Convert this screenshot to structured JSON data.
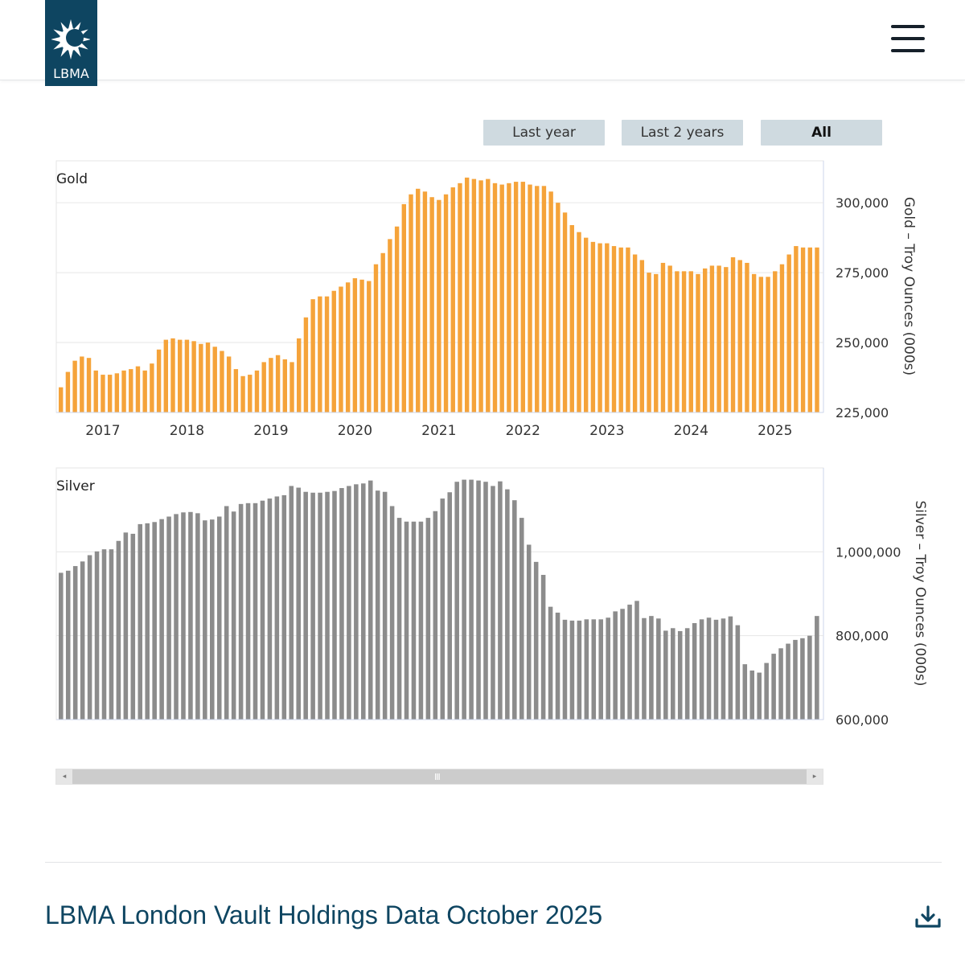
{
  "header": {
    "logo_text": "LBMA",
    "menu_icon": "hamburger-menu-icon"
  },
  "range_buttons": [
    {
      "label": "Last year",
      "active": false
    },
    {
      "label": "Last 2 years",
      "active": false
    },
    {
      "label": "All",
      "active": true
    }
  ],
  "page_title": "LBMA London Vault Holdings Data October 2025",
  "colors": {
    "brand": "#0e4561",
    "gold": "#f5a33a",
    "silver": "#8c8c8c",
    "button": "#cfdae0"
  },
  "chart_data": [
    {
      "type": "bar",
      "title": "Gold",
      "ylabel": "Gold – Troy Ounces (000s)",
      "ylim": [
        225000,
        315000
      ],
      "yticks": [
        225000,
        250000,
        275000,
        300000
      ],
      "ytick_labels": [
        "225,000",
        "250,000",
        "275,000",
        "300,000"
      ],
      "xtick_labels": [
        "2017",
        "2018",
        "2019",
        "2020",
        "2021",
        "2022",
        "2023",
        "2024",
        "2025"
      ],
      "start_month": "2016-07",
      "values": [
        234000,
        239500,
        243500,
        245000,
        244500,
        240000,
        238500,
        238500,
        239000,
        240000,
        240500,
        241500,
        240000,
        242500,
        247500,
        251000,
        251500,
        251000,
        251000,
        250500,
        249500,
        250000,
        248500,
        247000,
        245000,
        240500,
        238000,
        238500,
        240000,
        243000,
        244500,
        245500,
        244000,
        243000,
        251500,
        259000,
        265500,
        266500,
        266500,
        268500,
        270000,
        271500,
        273000,
        272500,
        272000,
        278000,
        282000,
        287000,
        291500,
        299500,
        303000,
        305000,
        304000,
        302000,
        301000,
        303000,
        305500,
        307000,
        309000,
        308500,
        308000,
        308500,
        307000,
        306500,
        307000,
        307500,
        307500,
        306500,
        306000,
        306000,
        304000,
        300000,
        296500,
        292000,
        289500,
        287500,
        286000,
        285500,
        285500,
        284500,
        284000,
        284000,
        281500,
        279500,
        275000,
        274500,
        278500,
        277500,
        275500,
        275500,
        275500,
        274500,
        276500,
        277500,
        277500,
        277000,
        280500,
        279500,
        278500,
        274500,
        273500,
        273500,
        275500,
        278000,
        281500,
        284500,
        284000,
        284000,
        284000
      ]
    },
    {
      "type": "bar",
      "title": "Silver",
      "ylabel": "Silver – Troy Ounces (000s)",
      "ylim": [
        600000,
        1200000
      ],
      "yticks": [
        600000,
        800000,
        1000000
      ],
      "ytick_labels": [
        "600,000",
        "800,000",
        "1,000,000"
      ],
      "xtick_labels": [],
      "start_month": "2016-07",
      "values": [
        950000,
        955000,
        966000,
        977000,
        992000,
        1001000,
        1006000,
        1006000,
        1026000,
        1046000,
        1043000,
        1066000,
        1068000,
        1071000,
        1078000,
        1084000,
        1090000,
        1094000,
        1095000,
        1092000,
        1075000,
        1077000,
        1084000,
        1109000,
        1096000,
        1114000,
        1116000,
        1116000,
        1122000,
        1127000,
        1132000,
        1135000,
        1157000,
        1153000,
        1143000,
        1141000,
        1141000,
        1143000,
        1145000,
        1152000,
        1157000,
        1161000,
        1163000,
        1170000,
        1146000,
        1143000,
        1109000,
        1081000,
        1072000,
        1072000,
        1072000,
        1081000,
        1097000,
        1127000,
        1142000,
        1167000,
        1172000,
        1172000,
        1170000,
        1167000,
        1157000,
        1168000,
        1149000,
        1123000,
        1081000,
        1017000,
        976000,
        945000,
        869000,
        855000,
        838000,
        836000,
        836000,
        839000,
        839000,
        839000,
        843000,
        858000,
        864000,
        874000,
        883000,
        842000,
        847000,
        841000,
        812000,
        818000,
        811000,
        818000,
        830000,
        839000,
        843000,
        838000,
        841000,
        846000,
        825000,
        732000,
        717000,
        712000,
        735000,
        757000,
        770000,
        781000,
        790000,
        794000,
        800000,
        847000
      ]
    }
  ],
  "scrollbar": {
    "left_arrow": "chevron-left-icon",
    "right_arrow": "chevron-right-icon",
    "grip": "III"
  },
  "download_icon": "download-icon"
}
